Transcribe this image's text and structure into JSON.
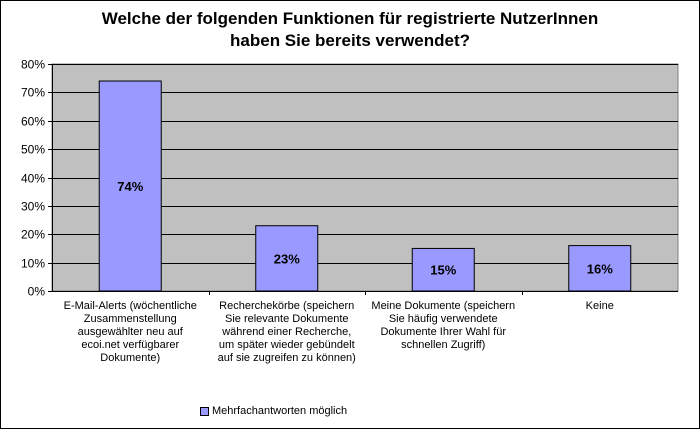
{
  "chart_data": {
    "type": "bar",
    "title_line1": "Welche der folgenden Funktionen für registrierte NutzerInnen",
    "title_line2": "haben Sie bereits verwendet?",
    "categories": [
      "E-Mail-Alerts (wöchentliche Zusammenstellung ausgewählter neu auf ecoi.net verfügbarer Dokumente)",
      "Recherchekörbe (speichern Sie relevante Dokumente während einer Recherche, um später wieder gebündelt auf sie zugreifen zu können)",
      "Meine Dokumente (speichern Sie häufig verwendete Dokumente Ihrer Wahl für schnellen Zugriff)",
      "Keine"
    ],
    "category_lines": [
      [
        "E-Mail-Alerts (wöchentliche",
        "Zusammenstellung",
        "ausgewählter neu auf",
        "ecoi.net verfügbarer",
        "Dokumente)"
      ],
      [
        "Recherchekörbe (speichern",
        "Sie relevante Dokumente",
        "während einer Recherche,",
        "um später wieder gebündelt",
        "auf sie zugreifen zu können)"
      ],
      [
        "Meine Dokumente (speichern",
        "Sie häufig verwendete",
        "Dokumente Ihrer Wahl für",
        "schnellen Zugriff)"
      ],
      [
        "Keine"
      ]
    ],
    "series": [
      {
        "name": "Mehrfachantworten möglich",
        "values": [
          74,
          23,
          15,
          16
        ]
      }
    ],
    "data_labels": [
      "74%",
      "23%",
      "15%",
      "16%"
    ],
    "y_ticks": [
      "0%",
      "10%",
      "20%",
      "30%",
      "40%",
      "50%",
      "60%",
      "70%",
      "80%"
    ],
    "ylim": [
      0,
      80
    ],
    "grid": true,
    "legend_position": "bottom",
    "colors": {
      "bar": "#9999ff",
      "plot_bg": "#c0c0c0",
      "gridline": "#000000"
    }
  }
}
